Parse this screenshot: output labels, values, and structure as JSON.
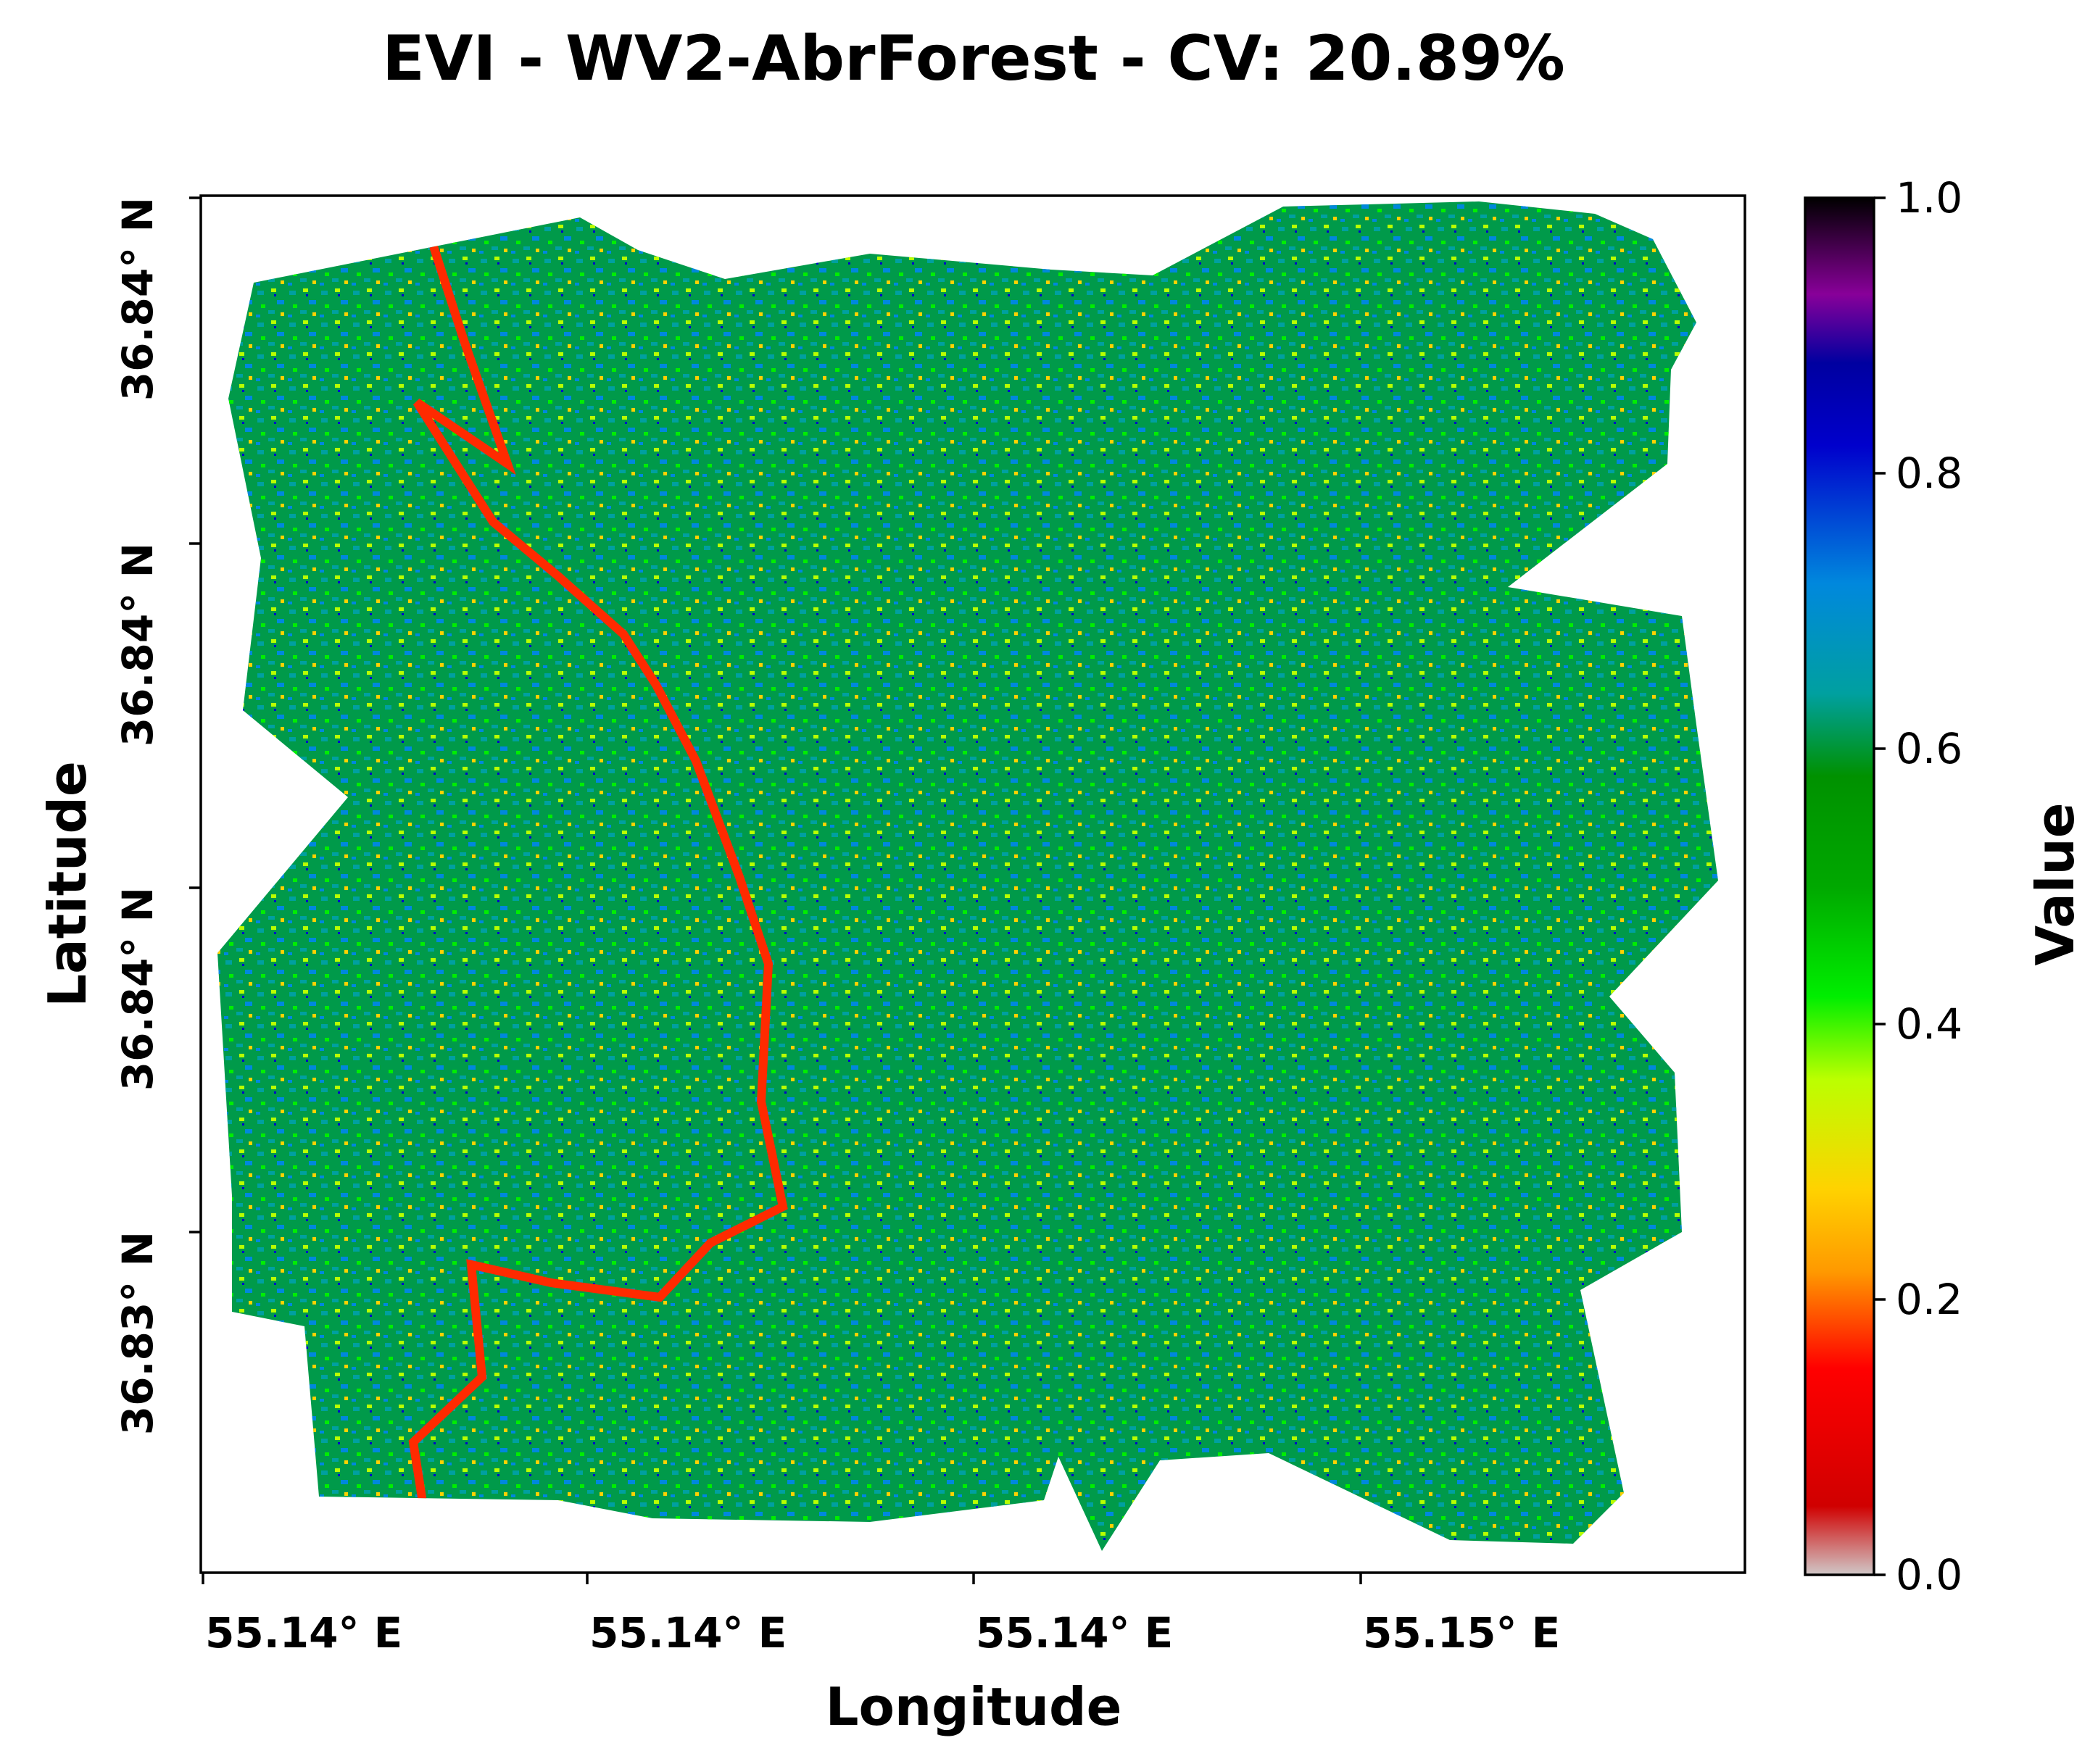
{
  "chart_data": {
    "type": "heatmap",
    "title": "EVI - WV2-AbrForest - CV: 20.89%",
    "xlabel": "Longitude",
    "ylabel": "Latitude",
    "x_ticks": [
      "55.14° E",
      "55.14° E",
      "55.14° E",
      "55.15° E"
    ],
    "y_ticks": [
      "36.84° N",
      "36.84° N",
      "36.84° N",
      "36.83° N"
    ],
    "colorbar": {
      "label": "Value",
      "colormap": "nipy_spectral",
      "range": [
        0.0,
        1.0
      ],
      "ticks": [
        "0.0",
        "0.2",
        "0.4",
        "0.6",
        "0.8",
        "1.0"
      ],
      "stops": [
        [
          0.0,
          "#d0c8c8"
        ],
        [
          0.05,
          "#d00000"
        ],
        [
          0.15,
          "#ff0000"
        ],
        [
          0.22,
          "#ff9900"
        ],
        [
          0.28,
          "#ffd200"
        ],
        [
          0.36,
          "#bbff00"
        ],
        [
          0.42,
          "#00ee00"
        ],
        [
          0.5,
          "#00a800"
        ],
        [
          0.58,
          "#009100"
        ],
        [
          0.64,
          "#00a0a0"
        ],
        [
          0.72,
          "#0088dd"
        ],
        [
          0.82,
          "#0000cc"
        ],
        [
          0.88,
          "#0000a0"
        ],
        [
          0.93,
          "#880099"
        ],
        [
          1.0,
          "#000000"
        ]
      ]
    },
    "value_distribution": {
      "dominant_range": [
        0.5,
        0.75
      ],
      "typical_values": [
        0.4,
        0.55,
        0.62,
        0.7
      ],
      "low_value_features": "river channel with values around 0.1-0.3",
      "coefficient_of_variation": "20.89%"
    }
  }
}
